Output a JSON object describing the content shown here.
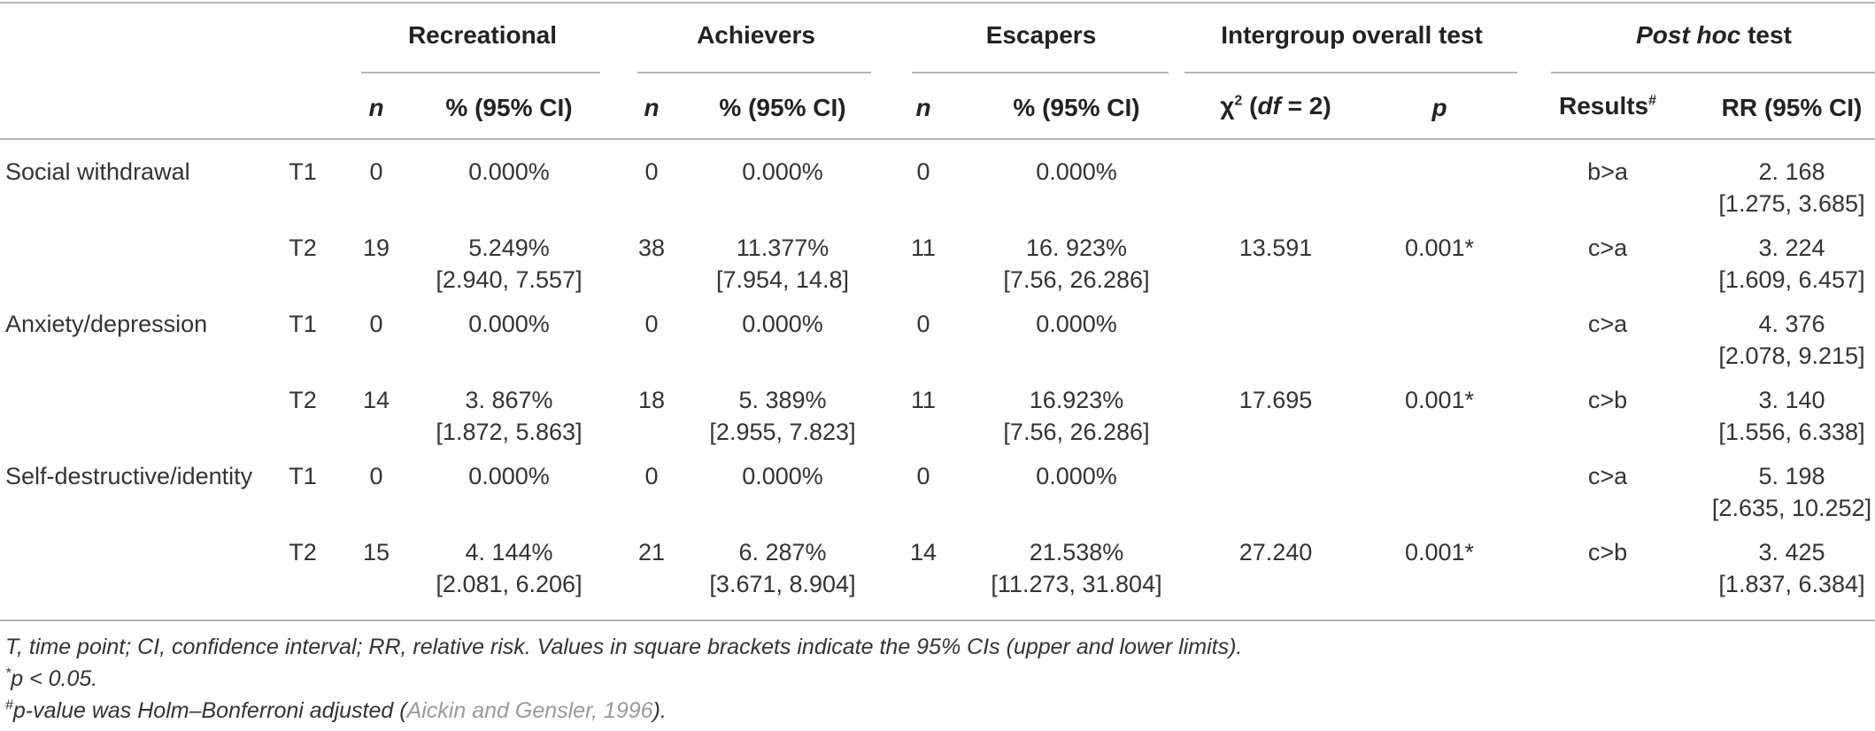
{
  "header": {
    "groups": [
      {
        "label": "Recreational"
      },
      {
        "label": "Achievers"
      },
      {
        "label": "Escapers"
      },
      {
        "label": "Intergroup overall test"
      },
      {
        "label_italic": "Post hoc",
        "label_rest": " test"
      }
    ],
    "sub": {
      "n": "n",
      "pct": "% (95% CI)",
      "chi_pre": "χ",
      "chi_sup": "2",
      "chi_open": " (",
      "chi_df": "df",
      "chi_close": " = 2)",
      "p": "p",
      "results": "Results",
      "results_sup": "#",
      "rr": "RR (95% CI)"
    }
  },
  "rows": [
    {
      "label": "Social withdrawal",
      "t": "T1",
      "rn": "0",
      "rp": "0.000%",
      "rci": "",
      "an": "0",
      "ap": "0.000%",
      "aci": "",
      "en": "0",
      "ep": "0.000%",
      "eci": "",
      "chi": "",
      "p": "",
      "res": "b>a",
      "rr": "2. 168",
      "rrci": "[1.275, 3.685]"
    },
    {
      "label": "",
      "t": "T2",
      "rn": "19",
      "rp": "5.249%",
      "rci": "[2.940, 7.557]",
      "an": "38",
      "ap": "11.377%",
      "aci": "[7.954, 14.8]",
      "en": "11",
      "ep": "16. 923%",
      "eci": "[7.56, 26.286]",
      "chi": "13.591",
      "p": "0.001*",
      "res": "c>a",
      "rr": "3. 224",
      "rrci": "[1.609, 6.457]"
    },
    {
      "label": "Anxiety/depression",
      "t": "T1",
      "rn": "0",
      "rp": "0.000%",
      "rci": "",
      "an": "0",
      "ap": "0.000%",
      "aci": "",
      "en": "0",
      "ep": "0.000%",
      "eci": "",
      "chi": "",
      "p": "",
      "res": "c>a",
      "rr": "4. 376",
      "rrci": "[2.078, 9.215]"
    },
    {
      "label": "",
      "t": "T2",
      "rn": "14",
      "rp": "3. 867%",
      "rci": "[1.872, 5.863]",
      "an": "18",
      "ap": "5. 389%",
      "aci": "[2.955, 7.823]",
      "en": "11",
      "ep": "16.923%",
      "eci": "[7.56, 26.286]",
      "chi": "17.695",
      "p": "0.001*",
      "res": "c>b",
      "rr": "3. 140",
      "rrci": "[1.556, 6.338]"
    },
    {
      "label": "Self-destructive/identity",
      "t": "T1",
      "rn": "0",
      "rp": "0.000%",
      "rci": "",
      "an": "0",
      "ap": "0.000%",
      "aci": "",
      "en": "0",
      "ep": "0.000%",
      "eci": "",
      "chi": "",
      "p": "",
      "res": "c>a",
      "rr": "5. 198",
      "rrci": "[2.635, 10.252]"
    },
    {
      "label": "",
      "t": "T2",
      "rn": "15",
      "rp": "4. 144%",
      "rci": "[2.081, 6.206]",
      "an": "21",
      "ap": "6. 287%",
      "aci": "[3.671, 8.904]",
      "en": "14",
      "ep": "21.538%",
      "eci": "[11.273, 31.804]",
      "chi": "27.240",
      "p": "0.001*",
      "res": "c>b",
      "rr": "3. 425",
      "rrci": "[1.837, 6.384]"
    }
  ],
  "notes": {
    "line1": "T, time point; CI, confidence interval; RR, relative risk. Values in square brackets indicate the 95% CIs (upper and lower limits).",
    "line2_sup": "*",
    "line2": "p < 0.05.",
    "line3_sup": "#",
    "line3_a": "p-value was Holm–Bonferroni adjusted (",
    "line3_link": "Aickin and Gensler, 1996",
    "line3_b": ")."
  }
}
